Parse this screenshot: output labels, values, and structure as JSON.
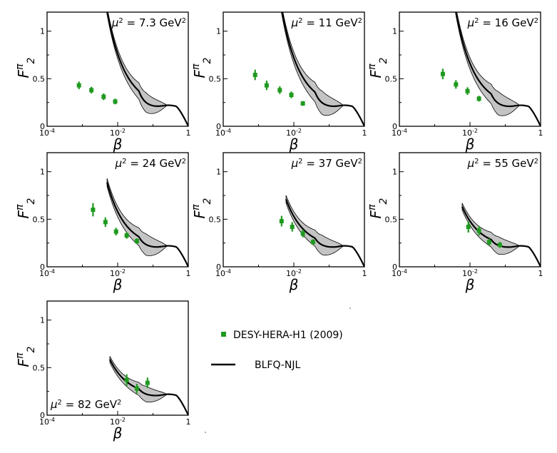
{
  "legend": {
    "data_label": "DESY-HERA-H1 (2009)",
    "model_label": "BLFQ-NJL",
    "data_color": "#1f9a1f",
    "model_color": "#000000"
  },
  "axes": {
    "xlabel": "β",
    "ylabel_main": "F",
    "ylabel_sup": "π",
    "ylabel_sub": "2",
    "xticks": [
      {
        "value": 0.0001,
        "base": "10",
        "exp": "-4"
      },
      {
        "value": 0.01,
        "base": "10",
        "exp": "-2"
      },
      {
        "value": 1,
        "base": "1",
        "exp": ""
      }
    ],
    "yticks": [
      {
        "value": 0,
        "label": "0"
      },
      {
        "value": 0.5,
        "label": "0.5"
      },
      {
        "value": 1,
        "label": "1"
      }
    ],
    "xlim": [
      0.0001,
      1
    ],
    "ylim": [
      0,
      1.2
    ],
    "band_color": "#c4c4c4",
    "curve_color": "#000000"
  },
  "chart_data": [
    {
      "type": "scatter",
      "title_prefix": "μ",
      "title_sup": "2",
      "title_value": "= 7.3 GeV",
      "title_unit_sup": "2",
      "title_position": "top-right",
      "points": [
        {
          "x": 0.0008,
          "y": 0.43,
          "err": 0.04
        },
        {
          "x": 0.0018,
          "y": 0.38,
          "err": 0.035
        },
        {
          "x": 0.004,
          "y": 0.31,
          "err": 0.035
        },
        {
          "x": 0.0085,
          "y": 0.26,
          "err": 0.03
        }
      ],
      "band": {
        "x_start": 0.0025,
        "center_at_0.01": 0.76,
        "halfwidth_at_0.01": 0.05
      }
    },
    {
      "type": "scatter",
      "title_prefix": "μ",
      "title_sup": "2",
      "title_value": "= 11 GeV",
      "title_unit_sup": "2",
      "title_position": "top-right",
      "points": [
        {
          "x": 0.0008,
          "y": 0.54,
          "err": 0.055
        },
        {
          "x": 0.0017,
          "y": 0.43,
          "err": 0.05
        },
        {
          "x": 0.004,
          "y": 0.38,
          "err": 0.04
        },
        {
          "x": 0.0085,
          "y": 0.33,
          "err": 0.035
        },
        {
          "x": 0.018,
          "y": 0.24,
          "err": 0.025
        }
      ],
      "band": {
        "x_start": 0.0025,
        "center_at_0.01": 0.72,
        "halfwidth_at_0.01": 0.06
      }
    },
    {
      "type": "scatter",
      "title_prefix": "μ",
      "title_sup": "2",
      "title_value": "= 16 GeV",
      "title_unit_sup": "2",
      "title_position": "top-right",
      "points": [
        {
          "x": 0.0017,
          "y": 0.55,
          "err": 0.055
        },
        {
          "x": 0.004,
          "y": 0.44,
          "err": 0.045
        },
        {
          "x": 0.0085,
          "y": 0.37,
          "err": 0.04
        },
        {
          "x": 0.018,
          "y": 0.29,
          "err": 0.03
        }
      ],
      "band": {
        "x_start": 0.003,
        "center_at_0.01": 0.66,
        "halfwidth_at_0.01": 0.06
      }
    },
    {
      "type": "scatter",
      "title_prefix": "μ",
      "title_sup": "2",
      "title_value": "= 24 GeV",
      "title_unit_sup": "2",
      "title_position": "top-right",
      "points": [
        {
          "x": 0.002,
          "y": 0.6,
          "err": 0.07
        },
        {
          "x": 0.0045,
          "y": 0.47,
          "err": 0.05
        },
        {
          "x": 0.009,
          "y": 0.37,
          "err": 0.04
        },
        {
          "x": 0.018,
          "y": 0.33,
          "err": 0.035
        },
        {
          "x": 0.035,
          "y": 0.27,
          "err": 0.03
        }
      ],
      "band": {
        "x_start": 0.005,
        "center_at_0.01": 0.58,
        "halfwidth_at_0.01": 0.055
      }
    },
    {
      "type": "scatter",
      "title_prefix": "μ",
      "title_sup": "2",
      "title_value": "= 37 GeV",
      "title_unit_sup": "2",
      "title_position": "top-right",
      "points": [
        {
          "x": 0.0045,
          "y": 0.48,
          "err": 0.055
        },
        {
          "x": 0.009,
          "y": 0.42,
          "err": 0.05
        },
        {
          "x": 0.018,
          "y": 0.35,
          "err": 0.04
        },
        {
          "x": 0.035,
          "y": 0.26,
          "err": 0.03
        }
      ],
      "band": {
        "x_start": 0.006,
        "center_at_0.01": 0.53,
        "halfwidth_at_0.01": 0.05
      }
    },
    {
      "type": "scatter",
      "title_prefix": "μ",
      "title_sup": "2",
      "title_value": "= 55 GeV",
      "title_unit_sup": "2",
      "title_position": "top-right",
      "points": [
        {
          "x": 0.009,
          "y": 0.42,
          "err": 0.06
        },
        {
          "x": 0.018,
          "y": 0.38,
          "err": 0.05
        },
        {
          "x": 0.035,
          "y": 0.26,
          "err": 0.035
        },
        {
          "x": 0.07,
          "y": 0.23,
          "err": 0.03
        }
      ],
      "band": {
        "x_start": 0.006,
        "center_at_0.01": 0.48,
        "halfwidth_at_0.01": 0.045
      }
    },
    {
      "type": "scatter",
      "title_prefix": "μ",
      "title_sup": "2",
      "title_value": "= 82 GeV",
      "title_unit_sup": "2",
      "title_position": "bottom-left",
      "points": [
        {
          "x": 0.018,
          "y": 0.37,
          "err": 0.06
        },
        {
          "x": 0.035,
          "y": 0.28,
          "err": 0.05
        },
        {
          "x": 0.07,
          "y": 0.34,
          "err": 0.055
        }
      ],
      "band": {
        "x_start": 0.006,
        "center_at_0.01": 0.45,
        "halfwidth_at_0.01": 0.04
      }
    }
  ]
}
